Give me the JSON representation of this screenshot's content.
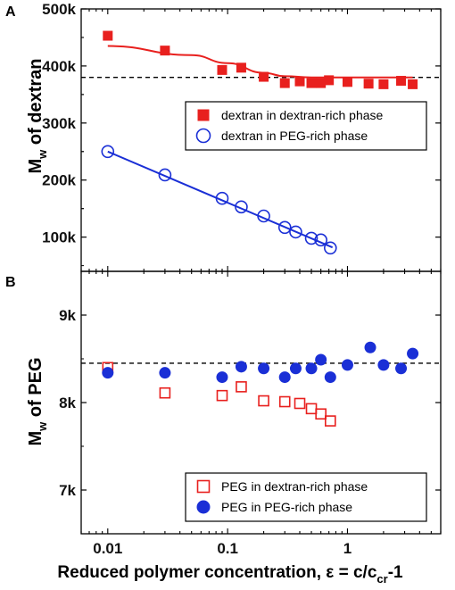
{
  "chart_data": [
    {
      "type": "scatter",
      "panel_label": "A",
      "ylabel": "Mw of dextran",
      "ylabel_main": "M",
      "ylabel_sub": "w",
      "ylabel_rest": " of dextran",
      "x_scale": "log",
      "xlim": [
        0.006,
        6
      ],
      "ylim": [
        40000,
        500000
      ],
      "y_tick_values": [
        100000,
        200000,
        300000,
        400000,
        500000
      ],
      "y_tick_labels": [
        "100k",
        "200k",
        "300k",
        "400k",
        "500k"
      ],
      "reference_line": 380000,
      "legend_position": "upper-right",
      "series": [
        {
          "name": "dextran in dextran-rich phase",
          "marker": "filled-square",
          "color": "#e8201e",
          "x": [
            0.01,
            0.03,
            0.09,
            0.13,
            0.2,
            0.3,
            0.4,
            0.5,
            0.6,
            0.7,
            1.0,
            1.5,
            2.0,
            2.8,
            3.5
          ],
          "y": [
            453000,
            427000,
            393000,
            397000,
            381000,
            370000,
            373000,
            370000,
            370000,
            375000,
            372000,
            369000,
            368000,
            374000,
            368000
          ],
          "fit": {
            "x": [
              0.01,
              0.05,
              0.1,
              0.2,
              0.3,
              0.5,
              1.0,
              2.0,
              3.5
            ],
            "y": [
              435000,
              419000,
              405000,
              388000,
              382000,
              380000,
              380000,
              380000,
              380000
            ]
          }
        },
        {
          "name": "dextran in PEG-rich phase",
          "marker": "open-circle",
          "color": "#1a2fd6",
          "x": [
            0.01,
            0.03,
            0.09,
            0.13,
            0.2,
            0.3,
            0.37,
            0.5,
            0.6,
            0.72
          ],
          "y": [
            250000,
            209000,
            168000,
            153000,
            137000,
            117000,
            109000,
            98000,
            95000,
            81000
          ],
          "fit": {
            "x": [
              0.01,
              0.75
            ],
            "y": [
              250000,
              82000
            ]
          }
        }
      ]
    },
    {
      "type": "scatter",
      "panel_label": "B",
      "ylabel": "Mw of PEG",
      "ylabel_main": "M",
      "ylabel_sub": "w",
      "ylabel_rest": " of PEG",
      "x_scale": "log",
      "xlim": [
        0.006,
        6
      ],
      "ylim": [
        6500,
        9500
      ],
      "y_tick_values": [
        7000,
        8000,
        9000
      ],
      "y_tick_labels": [
        "7k",
        "8k",
        "9k"
      ],
      "x_tick_values": [
        0.01,
        0.1,
        1
      ],
      "x_tick_labels": [
        "0.01",
        "0.1",
        "1"
      ],
      "xlabel_main": "Reduced polymer concentration, ε = c/c",
      "xlabel_sub": "cr",
      "xlabel_rest": "-1",
      "reference_line": 8450,
      "legend_position": "lower-right",
      "series": [
        {
          "name": "PEG in dextran-rich phase",
          "marker": "open-square",
          "color": "#e8201e",
          "x": [
            0.01,
            0.03,
            0.09,
            0.13,
            0.2,
            0.3,
            0.4,
            0.5,
            0.6,
            0.72
          ],
          "y": [
            8400,
            8110,
            8080,
            8180,
            8020,
            8010,
            7990,
            7930,
            7870,
            7790
          ]
        },
        {
          "name": "PEG in PEG-rich phase",
          "marker": "filled-circle",
          "color": "#1a2fd6",
          "x": [
            0.01,
            0.03,
            0.09,
            0.13,
            0.2,
            0.3,
            0.37,
            0.5,
            0.6,
            0.72,
            1.0,
            1.55,
            2.0,
            2.8,
            3.5
          ],
          "y": [
            8340,
            8340,
            8290,
            8410,
            8390,
            8290,
            8390,
            8390,
            8490,
            8290,
            8430,
            8630,
            8430,
            8390,
            8560
          ]
        }
      ]
    }
  ]
}
